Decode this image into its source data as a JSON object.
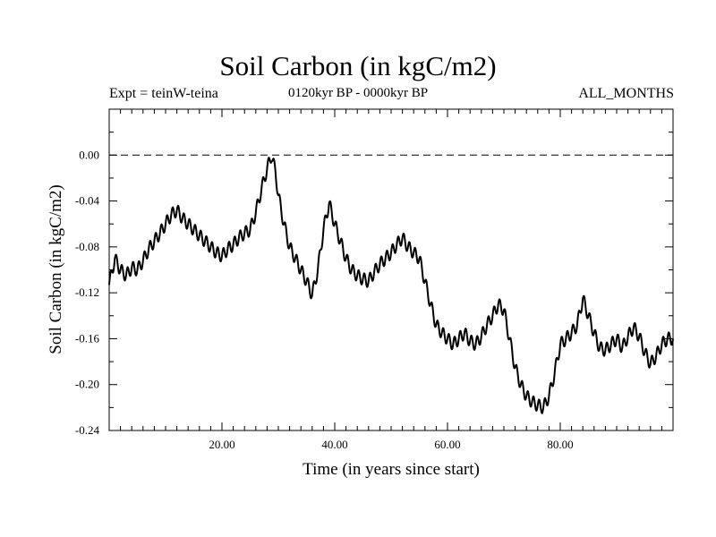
{
  "chart_data": {
    "type": "line",
    "title": "Soil Carbon (in kgC/m2)",
    "subtitle_left": "Expt = teinW-teina",
    "subtitle_center": "0120kyr BP - 0000kyr BP",
    "subtitle_right": "ALL_MONTHS",
    "xlabel": "Time (in years since start)",
    "ylabel": "Soil Carbon (in kgC/m2)",
    "xlim": [
      0,
      100
    ],
    "ylim": [
      -0.24,
      0.04
    ],
    "x_ticks": [
      20,
      40,
      60,
      80
    ],
    "x_tick_labels": [
      "20.00",
      "40.00",
      "60.00",
      "80.00"
    ],
    "y_ticks": [
      0.0,
      -0.04,
      -0.08,
      -0.12,
      -0.16,
      -0.2,
      -0.24
    ],
    "y_tick_labels": [
      "0.00",
      "-0.04",
      "-0.08",
      "-0.12",
      "-0.16",
      "-0.20",
      "-0.24"
    ],
    "reference_line": 0.0,
    "series": [
      {
        "name": "Soil Carbon",
        "color": "#000000",
        "x": [
          0,
          1,
          2,
          3,
          4,
          5,
          6,
          7,
          8,
          9,
          10,
          11,
          12,
          13,
          14,
          15,
          16,
          17,
          18,
          19,
          20,
          21,
          22,
          23,
          24,
          25,
          26,
          27,
          28,
          28.8,
          29.5,
          30,
          31,
          32,
          33,
          34,
          35,
          36,
          37,
          38,
          39,
          40,
          41,
          42,
          43,
          44,
          45,
          46,
          47,
          48,
          49,
          50,
          51,
          52,
          53,
          54,
          55,
          56,
          57,
          58,
          59,
          60,
          61,
          62,
          63,
          64,
          65,
          66,
          67,
          68,
          69,
          70,
          71,
          72,
          73,
          74,
          75,
          76,
          77,
          78,
          79,
          80,
          81,
          82,
          83,
          84,
          85,
          86,
          87,
          88,
          89,
          90,
          91,
          92,
          93,
          94,
          95,
          96,
          97,
          98,
          99,
          100
        ],
        "y": [
          -0.113,
          -0.09,
          -0.1,
          -0.105,
          -0.098,
          -0.1,
          -0.092,
          -0.082,
          -0.075,
          -0.068,
          -0.06,
          -0.052,
          -0.048,
          -0.055,
          -0.06,
          -0.065,
          -0.07,
          -0.075,
          -0.08,
          -0.085,
          -0.088,
          -0.082,
          -0.078,
          -0.072,
          -0.068,
          -0.065,
          -0.05,
          -0.03,
          -0.012,
          0.0,
          -0.015,
          -0.035,
          -0.06,
          -0.08,
          -0.09,
          -0.1,
          -0.11,
          -0.122,
          -0.1,
          -0.065,
          -0.042,
          -0.06,
          -0.075,
          -0.09,
          -0.1,
          -0.105,
          -0.108,
          -0.11,
          -0.102,
          -0.095,
          -0.09,
          -0.085,
          -0.078,
          -0.072,
          -0.08,
          -0.085,
          -0.09,
          -0.11,
          -0.13,
          -0.148,
          -0.155,
          -0.16,
          -0.165,
          -0.16,
          -0.155,
          -0.162,
          -0.165,
          -0.158,
          -0.148,
          -0.14,
          -0.13,
          -0.135,
          -0.16,
          -0.185,
          -0.2,
          -0.21,
          -0.215,
          -0.218,
          -0.22,
          -0.21,
          -0.19,
          -0.165,
          -0.16,
          -0.155,
          -0.148,
          -0.125,
          -0.14,
          -0.155,
          -0.168,
          -0.17,
          -0.165,
          -0.16,
          -0.168,
          -0.158,
          -0.15,
          -0.158,
          -0.172,
          -0.182,
          -0.175,
          -0.165,
          -0.16,
          -0.16
        ]
      }
    ]
  }
}
